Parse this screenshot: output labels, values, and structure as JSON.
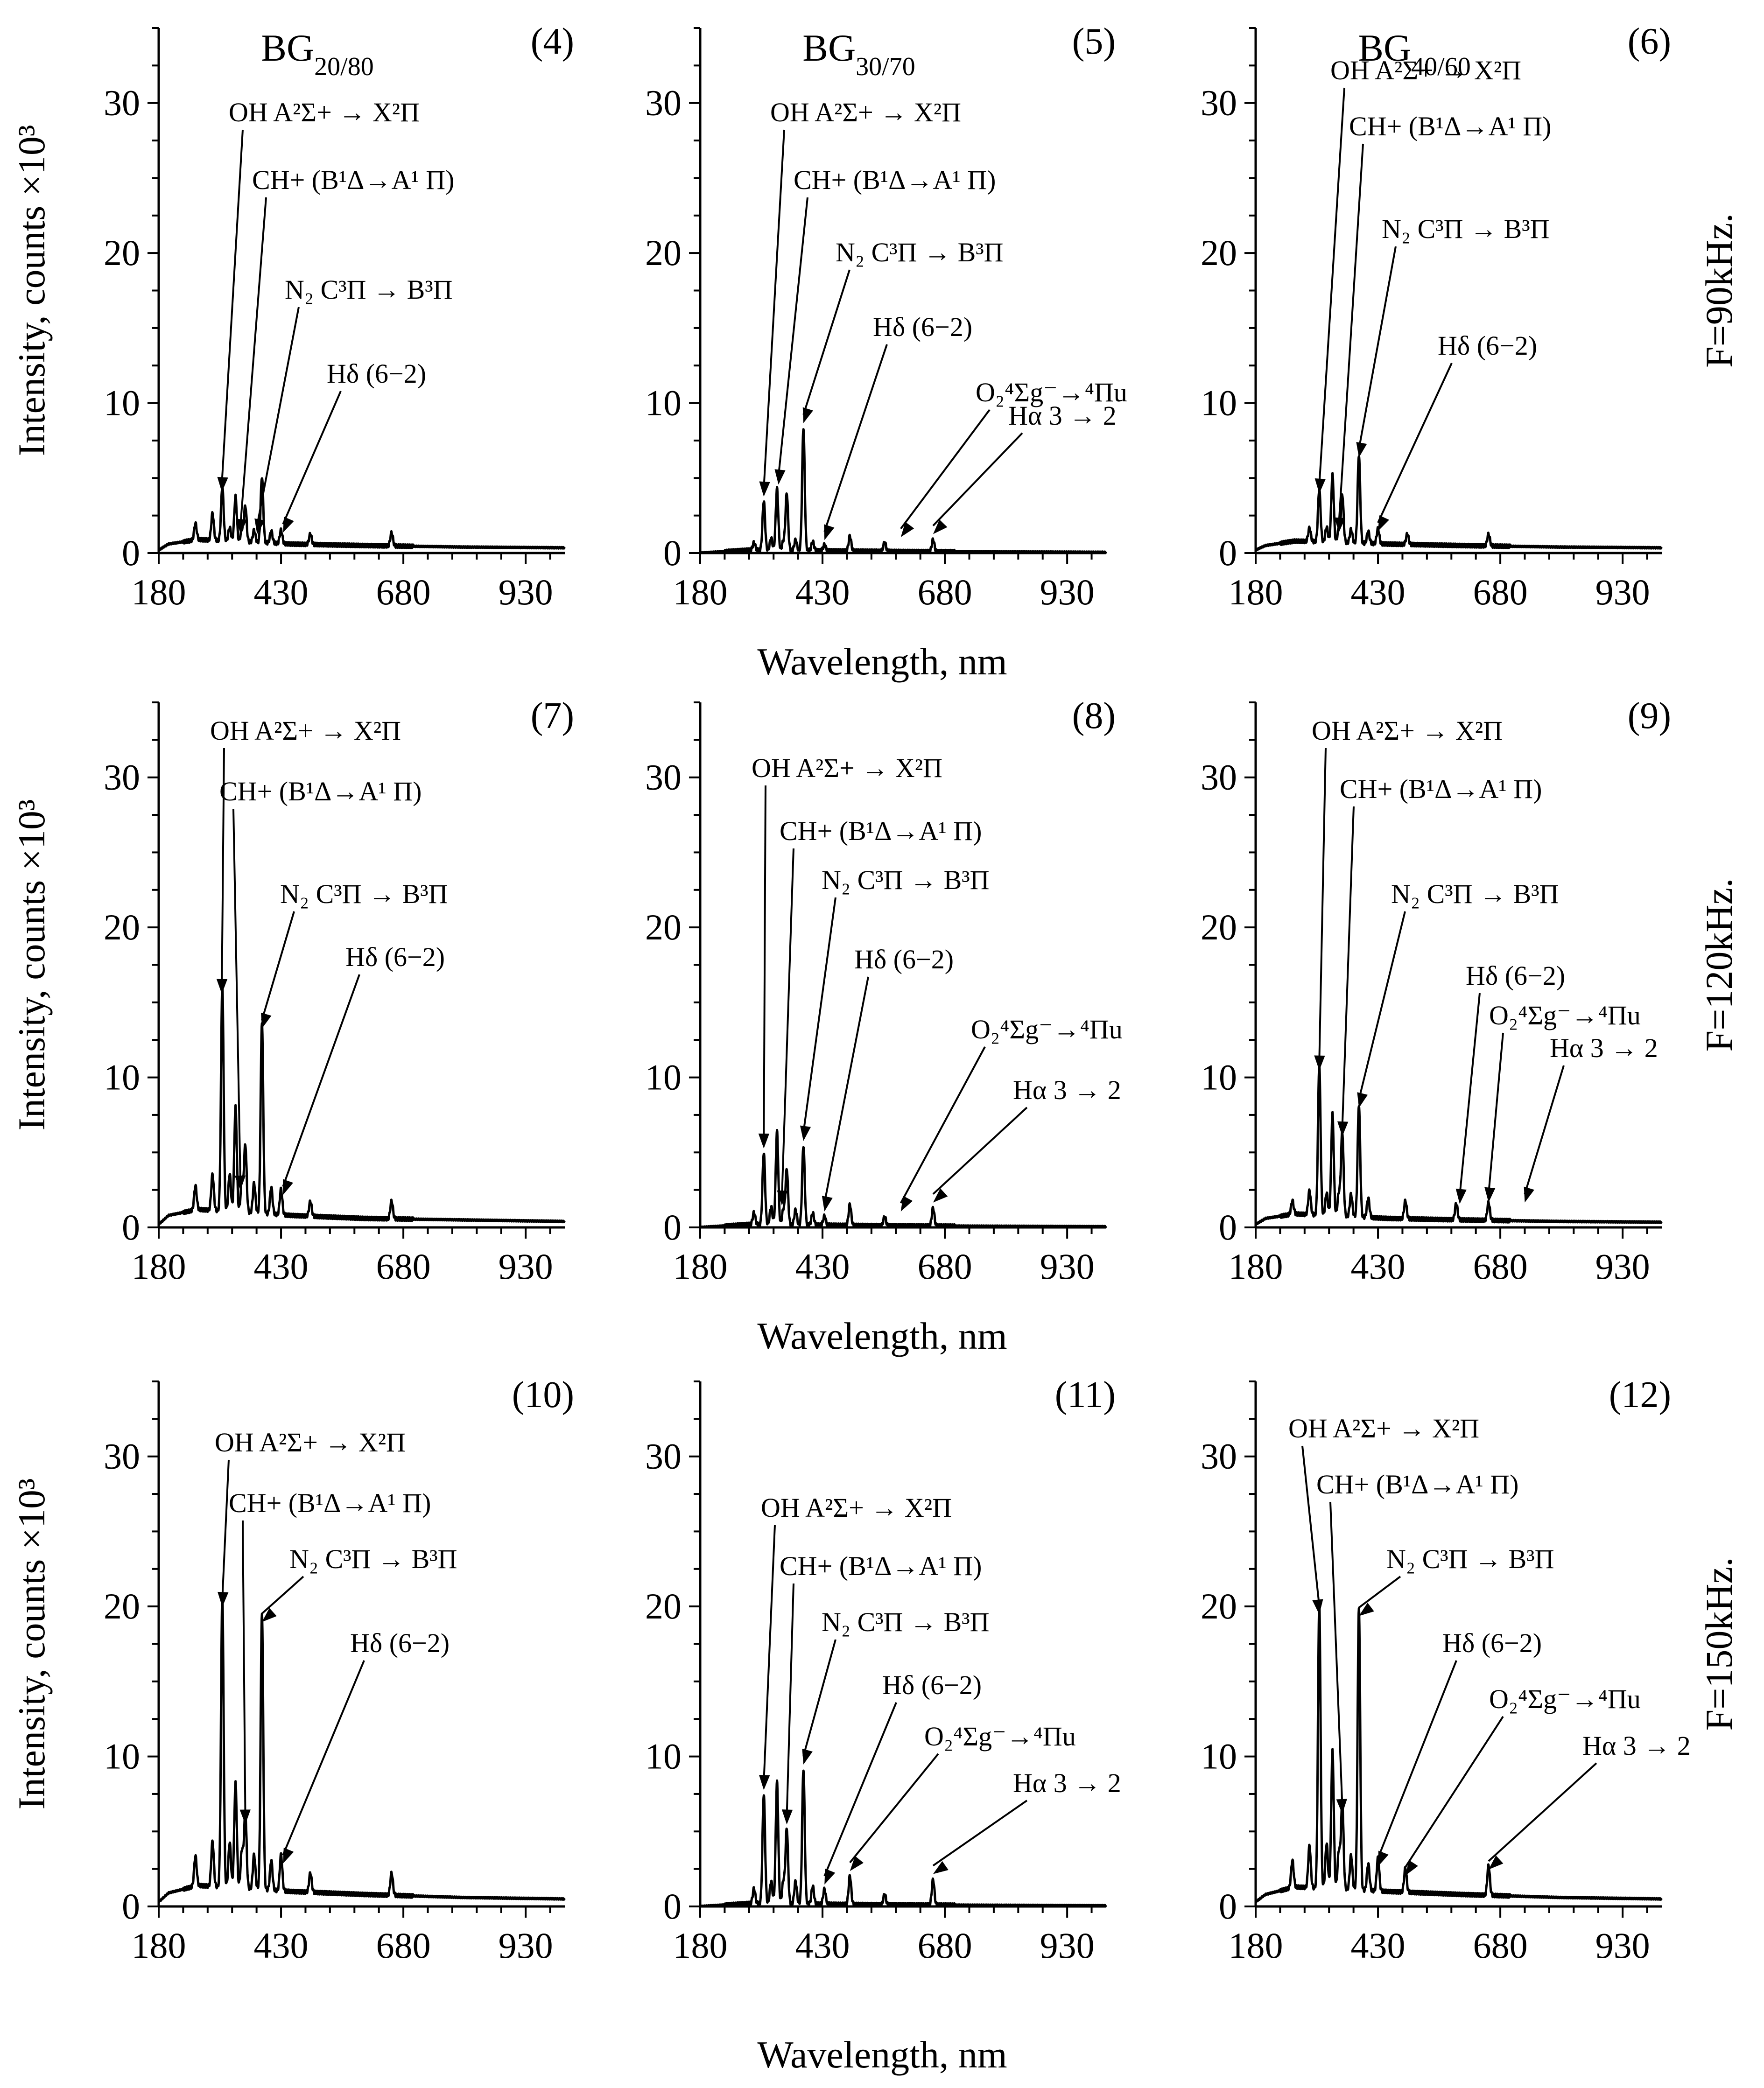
{
  "figure": {
    "y_axis_label": "Intensity, counts ×10³",
    "x_axis_label": "Wavelength, nm",
    "column_titles": [
      {
        "base": "BG",
        "sub": "20/80"
      },
      {
        "base": "BG",
        "sub": "30/70"
      },
      {
        "base": "BG",
        "sub": "40/60"
      }
    ],
    "row_labels": [
      "F=90kHz.",
      "F=120kHz.",
      "F=150kHz."
    ],
    "x_ticks": [
      180,
      430,
      680,
      930
    ],
    "y_ticks": [
      0,
      10,
      20,
      30
    ]
  },
  "chart_data": [
    {
      "type": "line",
      "panel": "(4)",
      "title": "BG20/80",
      "frequency": "F=90kHz.",
      "xlim": [
        180,
        1010
      ],
      "ylim": [
        0,
        35
      ],
      "peaks": [
        [
          255,
          1.1
        ],
        [
          290,
          1.8
        ],
        [
          310,
          3.6
        ],
        [
          325,
          0.9
        ],
        [
          337,
          3.0
        ],
        [
          350,
          0.8
        ],
        [
          357,
          2.4
        ],
        [
          375,
          0.8
        ],
        [
          391,
          4.4
        ],
        [
          410,
          0.8
        ],
        [
          430,
          0.9
        ],
        [
          490,
          0.7
        ],
        [
          656,
          0.9
        ]
      ],
      "baseline": [
        [
          180,
          0.2
        ],
        [
          200,
          0.6
        ],
        [
          260,
          0.9
        ],
        [
          450,
          0.6
        ],
        [
          600,
          0.5
        ],
        [
          800,
          0.4
        ],
        [
          1010,
          0.35
        ]
      ],
      "annotations": [
        {
          "text": "OH A²Σ+ → X²Π",
          "x": 309
        },
        {
          "text": "CH+ (B¹Δ→A¹ Π)",
          "x": 347
        },
        {
          "text": "N₂ C³Π → B³Π",
          "x": 381
        },
        {
          "text": "Hδ (6−2)",
          "x": 434
        }
      ]
    },
    {
      "type": "line",
      "panel": "(5)",
      "title": "BG30/70",
      "frequency": "F=90kHz.",
      "xlim": [
        180,
        1010
      ],
      "ylim": [
        0,
        35
      ],
      "peaks": [
        [
          290,
          0.5
        ],
        [
          310,
          3.3
        ],
        [
          325,
          0.8
        ],
        [
          337,
          4.1
        ],
        [
          350,
          0.6
        ],
        [
          357,
          3.8
        ],
        [
          375,
          0.7
        ],
        [
          391,
          8.2
        ],
        [
          410,
          0.6
        ],
        [
          434,
          0.4
        ],
        [
          486,
          1.0
        ],
        [
          557,
          0.6
        ],
        [
          656,
          0.8
        ]
      ],
      "baseline": [
        [
          180,
          0.0
        ],
        [
          280,
          0.2
        ],
        [
          600,
          0.1
        ],
        [
          1010,
          0.05
        ]
      ],
      "annotations": [
        {
          "text": "OH A²Σ+ → X²Π",
          "x": 310
        },
        {
          "text": "CH+ (B¹Δ→A¹ Π)",
          "x": 340
        },
        {
          "text": "N₂ C³Π → B³Π",
          "x": 391
        },
        {
          "text": "Hδ (6−2)",
          "x": 434
        },
        {
          "text": "O₂⁴Σg⁻→⁴Πu",
          "x": 590
        },
        {
          "text": "Hα 3 → 2",
          "x": 656
        }
      ]
    },
    {
      "type": "line",
      "panel": "(6)",
      "title": "BG40/60",
      "frequency": "F=90kHz.",
      "xlim": [
        180,
        1010
      ],
      "ylim": [
        0,
        35
      ],
      "peaks": [
        [
          290,
          0.9
        ],
        [
          310,
          3.5
        ],
        [
          325,
          1.0
        ],
        [
          337,
          4.5
        ],
        [
          350,
          0.9
        ],
        [
          357,
          3.2
        ],
        [
          375,
          0.9
        ],
        [
          391,
          5.9
        ],
        [
          410,
          0.8
        ],
        [
          430,
          1.0
        ],
        [
          490,
          0.7
        ],
        [
          656,
          0.8
        ]
      ],
      "baseline": [
        [
          180,
          0.2
        ],
        [
          200,
          0.5
        ],
        [
          260,
          0.8
        ],
        [
          450,
          0.6
        ],
        [
          600,
          0.5
        ],
        [
          800,
          0.4
        ],
        [
          1010,
          0.35
        ]
      ],
      "annotations": [
        {
          "text": "OH A²Σ+ → X²Π",
          "x": 310
        },
        {
          "text": "CH+ (B¹Δ→A¹ Π)",
          "x": 350
        },
        {
          "text": "N₂ C³Π → B³Π",
          "x": 391
        },
        {
          "text": "Hδ (6−2)",
          "x": 430
        }
      ]
    },
    {
      "type": "line",
      "panel": "(7)",
      "title": "",
      "frequency": "F=120kHz.",
      "xlim": [
        180,
        1010
      ],
      "ylim": [
        0,
        35
      ],
      "peaks": [
        [
          255,
          1.6
        ],
        [
          290,
          2.4
        ],
        [
          310,
          15.1
        ],
        [
          325,
          2.5
        ],
        [
          337,
          7.0
        ],
        [
          350,
          2.0
        ],
        [
          357,
          4.5
        ],
        [
          375,
          2.0
        ],
        [
          391,
          12.8
        ],
        [
          410,
          1.8
        ],
        [
          430,
          1.7
        ],
        [
          490,
          1.0
        ],
        [
          656,
          1.2
        ]
      ],
      "baseline": [
        [
          180,
          0.2
        ],
        [
          200,
          0.8
        ],
        [
          260,
          1.2
        ],
        [
          450,
          0.8
        ],
        [
          600,
          0.6
        ],
        [
          800,
          0.5
        ],
        [
          1010,
          0.4
        ]
      ],
      "annotations": [
        {
          "text": "OH A²Σ+ → X²Π",
          "x": 309
        },
        {
          "text": "CH+ (B¹Δ→A¹ Π)",
          "x": 347
        },
        {
          "text": "N₂ C³Π → B³Π",
          "x": 391
        },
        {
          "text": "Hδ (6−2)",
          "x": 434
        }
      ]
    },
    {
      "type": "line",
      "panel": "(8)",
      "title": "",
      "frequency": "F=120kHz.",
      "xlim": [
        180,
        1010
      ],
      "ylim": [
        0,
        35
      ],
      "peaks": [
        [
          290,
          0.8
        ],
        [
          310,
          4.8
        ],
        [
          325,
          1.2
        ],
        [
          337,
          6.2
        ],
        [
          350,
          1.0
        ],
        [
          357,
          3.7
        ],
        [
          375,
          1.0
        ],
        [
          391,
          5.3
        ],
        [
          410,
          0.8
        ],
        [
          434,
          0.6
        ],
        [
          486,
          1.4
        ],
        [
          557,
          0.6
        ],
        [
          656,
          1.2
        ]
      ],
      "baseline": [
        [
          180,
          0.0
        ],
        [
          280,
          0.2
        ],
        [
          600,
          0.1
        ],
        [
          1010,
          0.05
        ]
      ],
      "annotations": [
        {
          "text": "OH A²Σ+ → X²Π",
          "x": 310
        },
        {
          "text": "CH+ (B¹Δ→A¹ Π)",
          "x": 347
        },
        {
          "text": "N₂ C³Π → B³Π",
          "x": 391
        },
        {
          "text": "Hδ (6−2)",
          "x": 434
        },
        {
          "text": "O₂⁴Σg⁻→⁴Πu",
          "x": 590
        },
        {
          "text": "Hα 3 → 2",
          "x": 656
        }
      ]
    },
    {
      "type": "line",
      "panel": "(9)",
      "title": "",
      "frequency": "F=120kHz.",
      "xlim": [
        180,
        1010
      ],
      "ylim": [
        0,
        35
      ],
      "peaks": [
        [
          255,
          0.9
        ],
        [
          290,
          1.6
        ],
        [
          310,
          10.0
        ],
        [
          325,
          1.5
        ],
        [
          337,
          6.8
        ],
        [
          350,
          1.5
        ],
        [
          357,
          5.6
        ],
        [
          375,
          1.5
        ],
        [
          391,
          7.5
        ],
        [
          410,
          1.3
        ],
        [
          486,
          1.2
        ],
        [
          590,
          1.1
        ],
        [
          656,
          1.2
        ]
      ],
      "baseline": [
        [
          180,
          0.2
        ],
        [
          200,
          0.6
        ],
        [
          260,
          0.9
        ],
        [
          450,
          0.6
        ],
        [
          600,
          0.5
        ],
        [
          800,
          0.4
        ],
        [
          1010,
          0.35
        ]
      ],
      "annotations": [
        {
          "text": "OH A²Σ+ → X²Π",
          "x": 310
        },
        {
          "text": "CH+ (B¹Δ→A¹ Π)",
          "x": 357
        },
        {
          "text": "N₂ C³Π → B³Π",
          "x": 391
        },
        {
          "text": "Hδ (6−2)",
          "x": 597
        },
        {
          "text": "O₂⁴Σg⁻→⁴Πu",
          "x": 656
        },
        {
          "text": "Hα 3 → 2",
          "x": 730
        }
      ]
    },
    {
      "type": "line",
      "panel": "(10)",
      "title": "",
      "frequency": "F=150kHz.",
      "xlim": [
        180,
        1010
      ],
      "ylim": [
        0,
        35
      ],
      "peaks": [
        [
          255,
          2.0
        ],
        [
          290,
          3.0
        ],
        [
          310,
          19.5
        ],
        [
          325,
          3.0
        ],
        [
          337,
          7.0
        ],
        [
          350,
          2.5
        ],
        [
          357,
          5.0
        ],
        [
          375,
          2.3
        ],
        [
          391,
          18.5
        ],
        [
          410,
          2.0
        ],
        [
          430,
          2.4
        ],
        [
          490,
          1.3
        ],
        [
          656,
          1.5
        ]
      ],
      "baseline": [
        [
          180,
          0.3
        ],
        [
          200,
          0.9
        ],
        [
          260,
          1.4
        ],
        [
          450,
          1.0
        ],
        [
          600,
          0.8
        ],
        [
          800,
          0.6
        ],
        [
          1010,
          0.5
        ]
      ],
      "annotations": [
        {
          "text": "OH A²Σ+ → X²Π",
          "x": 310
        },
        {
          "text": "CH+ (B¹Δ→A¹ Π)",
          "x": 357
        },
        {
          "text": "N₂ C³Π → B³Π",
          "x": 391
        },
        {
          "text": "Hδ (6−2)",
          "x": 434
        }
      ]
    },
    {
      "type": "line",
      "panel": "(11)",
      "title": "",
      "frequency": "F=150kHz.",
      "xlim": [
        180,
        1010
      ],
      "ylim": [
        0,
        35
      ],
      "peaks": [
        [
          290,
          1.0
        ],
        [
          310,
          7.3
        ],
        [
          325,
          1.5
        ],
        [
          337,
          8.1
        ],
        [
          350,
          1.5
        ],
        [
          357,
          5.0
        ],
        [
          375,
          1.5
        ],
        [
          391,
          9.0
        ],
        [
          410,
          1.2
        ],
        [
          434,
          1.0
        ],
        [
          486,
          1.9
        ],
        [
          557,
          0.7
        ],
        [
          656,
          1.7
        ]
      ],
      "baseline": [
        [
          180,
          0.0
        ],
        [
          280,
          0.2
        ],
        [
          600,
          0.1
        ],
        [
          1010,
          0.05
        ]
      ],
      "annotations": [
        {
          "text": "OH A²Σ+ → X²Π",
          "x": 310
        },
        {
          "text": "CH+ (B¹Δ→A¹ Π)",
          "x": 357
        },
        {
          "text": "N₂ C³Π → B³Π",
          "x": 391
        },
        {
          "text": "Hδ (6−2)",
          "x": 434
        },
        {
          "text": "O₂⁴Σg⁻→⁴Πu",
          "x": 486
        },
        {
          "text": "Hα 3 → 2",
          "x": 656
        }
      ]
    },
    {
      "type": "line",
      "panel": "(12)",
      "title": "",
      "frequency": "F=150kHz.",
      "xlim": [
        180,
        1010
      ],
      "ylim": [
        0,
        35
      ],
      "peaks": [
        [
          255,
          1.8
        ],
        [
          290,
          2.8
        ],
        [
          310,
          19.0
        ],
        [
          325,
          3.0
        ],
        [
          337,
          9.2
        ],
        [
          350,
          2.5
        ],
        [
          357,
          5.7
        ],
        [
          375,
          2.3
        ],
        [
          391,
          18.9
        ],
        [
          410,
          1.8
        ],
        [
          430,
          2.2
        ],
        [
          486,
          1.6
        ],
        [
          656,
          2.0
        ]
      ],
      "baseline": [
        [
          180,
          0.3
        ],
        [
          200,
          0.8
        ],
        [
          260,
          1.3
        ],
        [
          450,
          1.0
        ],
        [
          600,
          0.8
        ],
        [
          800,
          0.6
        ],
        [
          1010,
          0.5
        ]
      ],
      "annotations": [
        {
          "text": "OH A²Σ+ → X²Π",
          "x": 310
        },
        {
          "text": "CH+ (B¹Δ→A¹ Π)",
          "x": 357
        },
        {
          "text": "N₂ C³Π → B³Π",
          "x": 391
        },
        {
          "text": "Hδ (6−2)",
          "x": 430
        },
        {
          "text": "O₂⁴Σg⁻→⁴Πu",
          "x": 486
        },
        {
          "text": "Hα 3 → 2",
          "x": 656
        }
      ]
    }
  ]
}
